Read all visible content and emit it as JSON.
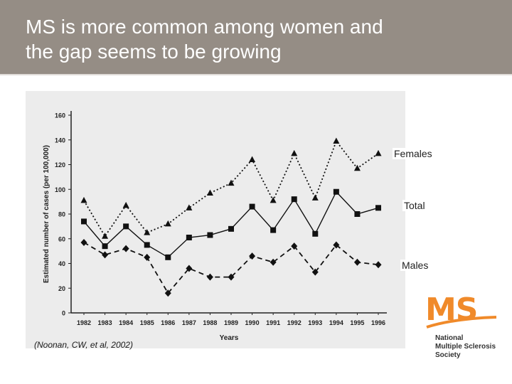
{
  "slide": {
    "title_line1": "MS is more common among women and",
    "title_line2": "the gap seems to be growing",
    "citation": "(Noonan, CW, et al, 2002)",
    "header_color": "#958d85"
  },
  "logo": {
    "mark": "MS",
    "line1": "National",
    "line2": "Multiple Sclerosis",
    "line3": "Society",
    "color": "#f08a2a"
  },
  "chart_data": {
    "type": "line",
    "xlabel": "Years",
    "ylabel": "Estimated number of cases (per 100,000)",
    "ylim": [
      0,
      160
    ],
    "yticks": [
      0,
      20,
      40,
      60,
      80,
      100,
      120,
      140,
      160
    ],
    "categories": [
      "1982",
      "1983",
      "1984",
      "1985",
      "1986",
      "1987",
      "1988",
      "1989",
      "1990",
      "1991",
      "1992",
      "1993",
      "1994",
      "1995",
      "1996"
    ],
    "grid": false,
    "series": [
      {
        "name": "Females",
        "marker": "triangle",
        "dash": "dotted",
        "values": [
          91,
          62,
          87,
          65,
          72,
          85,
          97,
          105,
          124,
          91,
          129,
          93,
          139,
          117,
          129
        ]
      },
      {
        "name": "Total",
        "marker": "square",
        "dash": "solid",
        "values": [
          74,
          54,
          70,
          55,
          45,
          61,
          63,
          68,
          86,
          67,
          92,
          64,
          98,
          80,
          85
        ]
      },
      {
        "name": "Males",
        "marker": "diamond",
        "dash": "dashed",
        "values": [
          57,
          47,
          52,
          45,
          16,
          36,
          29,
          29,
          46,
          41,
          54,
          33,
          55,
          41,
          39
        ]
      }
    ]
  }
}
